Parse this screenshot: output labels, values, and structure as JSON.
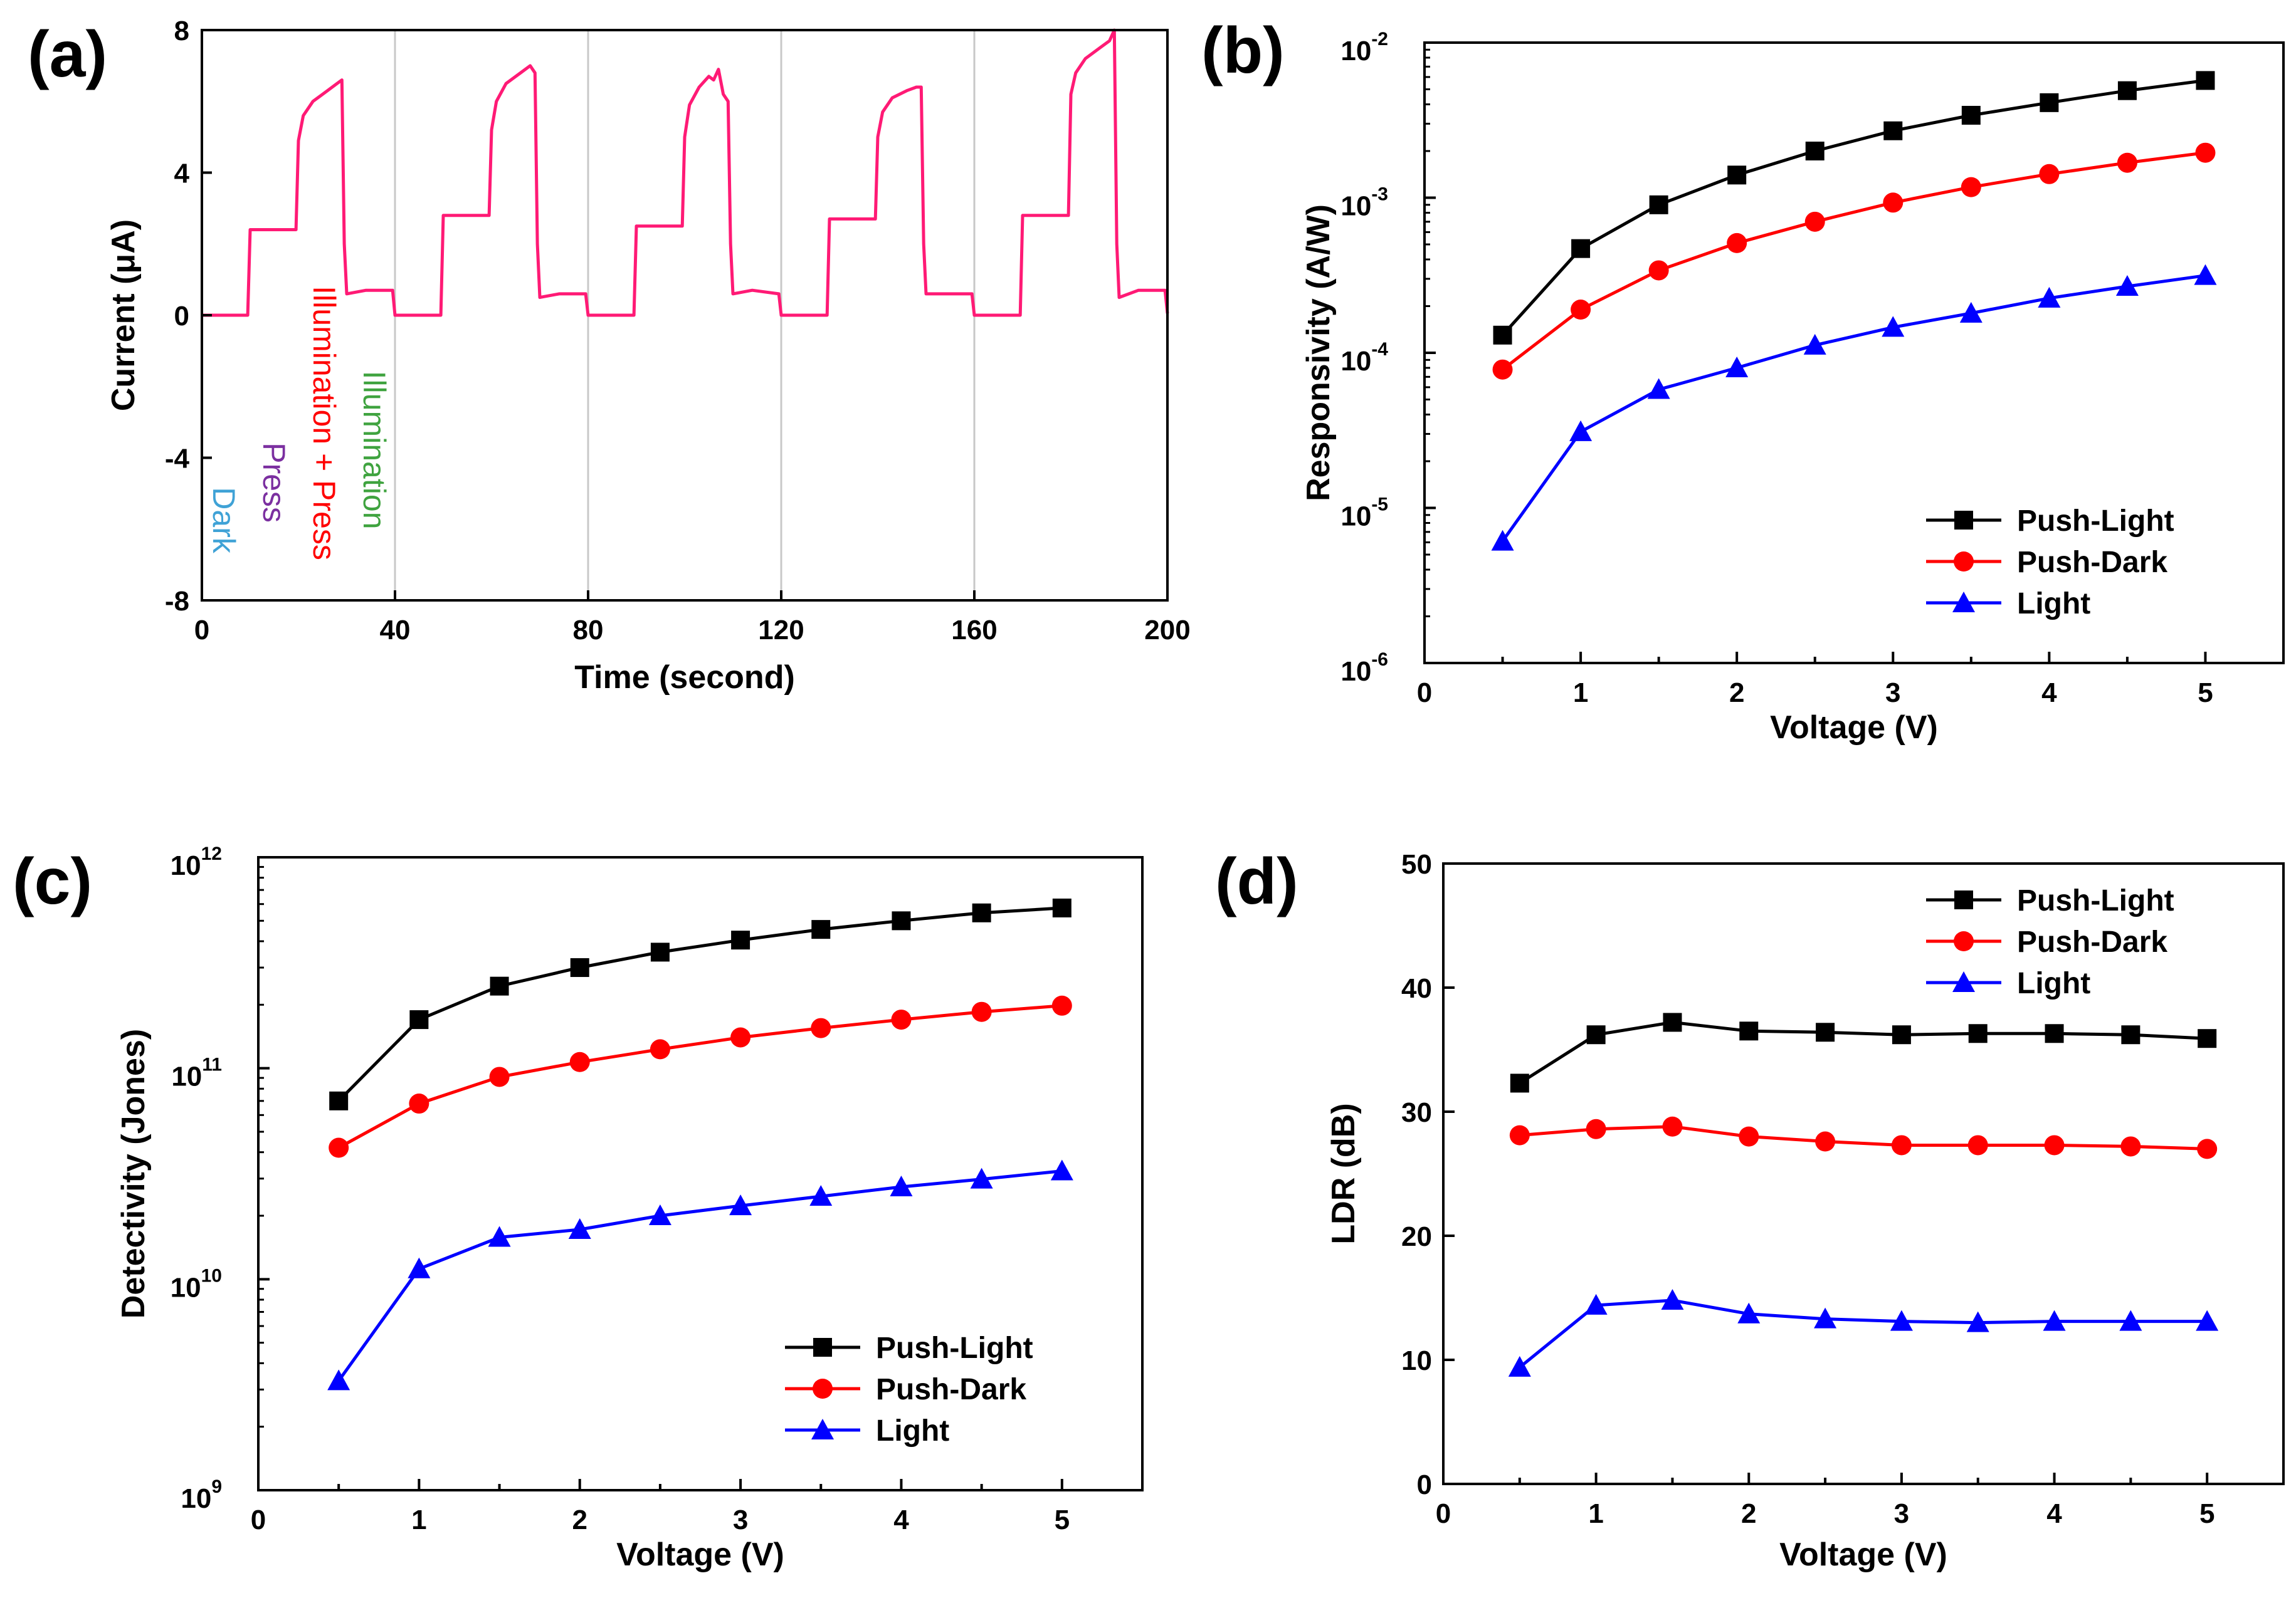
{
  "colors": {
    "black": "#000000",
    "red": "#ff0000",
    "blue": "#0000ff",
    "pink": "#ff1a75",
    "grid": "#c8c8c8"
  },
  "chart_data": [
    {
      "panel": "(a)",
      "type": "line",
      "title": "",
      "xlabel": "Time (second)",
      "ylabel": "Current (μA)",
      "xlim": [
        0,
        200
      ],
      "ylim": [
        -8,
        8
      ],
      "xticks": [
        "0",
        "40",
        "80",
        "120",
        "160",
        "200"
      ],
      "yticks": [
        "-8",
        "-4",
        "0",
        "4",
        "8"
      ],
      "cycle_boundaries": [
        40,
        80,
        120,
        160
      ],
      "annotations": [
        {
          "text": "Dark",
          "color": "#3fa2d6"
        },
        {
          "text": "Press",
          "color": "#7b2fa0"
        },
        {
          "text": "Illumination + Press",
          "color": "#ff0000"
        },
        {
          "text": "Illumination",
          "color": "#3fa33f"
        }
      ],
      "series": [
        {
          "name": "Current",
          "color": "#ff1a75",
          "x": [
            0,
            9.5,
            10,
            19.5,
            20,
            21,
            23,
            26,
            28,
            29,
            29.5,
            30,
            34,
            39.5,
            40,
            49.5,
            50,
            59.5,
            60,
            61,
            63,
            66,
            68,
            69,
            69.5,
            70,
            74,
            79.5,
            80,
            89.5,
            90,
            99.5,
            100,
            101,
            103,
            105,
            106,
            107,
            108,
            109,
            109.5,
            110,
            114,
            119.5,
            120,
            129.5,
            130,
            139.5,
            140,
            141,
            143,
            146,
            148,
            149,
            149.5,
            150,
            154,
            159.5,
            160,
            169.5,
            170,
            179.5,
            180,
            181,
            183,
            186,
            188,
            189,
            189.5,
            190,
            194,
            199.5,
            200
          ],
          "y": [
            0,
            0,
            2.4,
            2.4,
            4.9,
            5.6,
            6.0,
            6.3,
            6.5,
            6.6,
            2.0,
            0.6,
            0.7,
            0.7,
            0,
            0,
            2.8,
            2.8,
            5.2,
            6.0,
            6.5,
            6.8,
            7.0,
            6.8,
            2.0,
            0.5,
            0.6,
            0.6,
            0,
            0,
            2.5,
            2.5,
            5.0,
            5.9,
            6.4,
            6.7,
            6.6,
            6.9,
            6.2,
            6.0,
            2.0,
            0.6,
            0.7,
            0.6,
            0,
            0,
            2.7,
            2.7,
            5.0,
            5.7,
            6.1,
            6.3,
            6.4,
            6.4,
            2.0,
            0.6,
            0.6,
            0.6,
            0,
            0,
            2.8,
            2.8,
            6.2,
            6.8,
            7.2,
            7.5,
            7.7,
            8.0,
            2.0,
            0.5,
            0.7,
            0.7,
            0.05
          ]
        }
      ]
    },
    {
      "panel": "(b)",
      "type": "line",
      "title": "",
      "xlabel": "Voltage (V)",
      "ylabel": "Responsivity (A/W)",
      "yscale": "log",
      "xlim": [
        0,
        5.5
      ],
      "ylim_exp": [
        -6,
        -2
      ],
      "xticks": [
        "0",
        "1",
        "2",
        "3",
        "4",
        "5"
      ],
      "ytick_base": "10",
      "ytick_exponents": [
        "-6",
        "-5",
        "-4",
        "-3",
        "-2"
      ],
      "legend_position": "bottom-right",
      "x": [
        0.5,
        1.0,
        1.5,
        2.0,
        2.5,
        3.0,
        3.5,
        4.0,
        4.5,
        5.0
      ],
      "series": [
        {
          "name": "Push-Light",
          "color": "#000000",
          "marker": "square",
          "values": [
            0.00013,
            0.00047,
            0.0009,
            0.0014,
            0.002,
            0.0027,
            0.0034,
            0.0041,
            0.0049,
            0.0057
          ]
        },
        {
          "name": "Push-Dark",
          "color": "#ff0000",
          "marker": "circle",
          "values": [
            7.8e-05,
            0.00019,
            0.00034,
            0.00051,
            0.0007,
            0.00093,
            0.00117,
            0.00142,
            0.00168,
            0.00195
          ]
        },
        {
          "name": "Light",
          "color": "#0000ff",
          "marker": "triangle",
          "values": [
            6.1e-06,
            3.1e-05,
            5.8e-05,
            8e-05,
            0.000112,
            0.000146,
            0.00018,
            0.000225,
            0.000268,
            0.000315
          ]
        }
      ]
    },
    {
      "panel": "(c)",
      "type": "line",
      "title": "",
      "xlabel": "Voltage (V)",
      "ylabel": "Detectivity (Jones)",
      "yscale": "log",
      "xlim": [
        0,
        5.5
      ],
      "ylim_exp": [
        9,
        12
      ],
      "xticks": [
        "0",
        "1",
        "2",
        "3",
        "4",
        "5"
      ],
      "ytick_base": "10",
      "ytick_exponents": [
        "9",
        "10",
        "11",
        "12"
      ],
      "legend_position": "bottom-right",
      "x": [
        0.5,
        1.0,
        1.5,
        2.0,
        2.5,
        3.0,
        3.5,
        4.0,
        4.5,
        5.0
      ],
      "series": [
        {
          "name": "Push-Light",
          "color": "#000000",
          "marker": "square",
          "values": [
            70000000000,
            170000000000,
            245000000000,
            300000000000,
            355000000000,
            405000000000,
            455000000000,
            500000000000,
            545000000000,
            575000000000
          ]
        },
        {
          "name": "Push-Dark",
          "color": "#ff0000",
          "marker": "circle",
          "values": [
            42000000000,
            68000000000,
            91000000000,
            107000000000,
            123000000000,
            140000000000,
            155000000000,
            170000000000,
            185000000000,
            198000000000
          ]
        },
        {
          "name": "Light",
          "color": "#0000ff",
          "marker": "triangle",
          "values": [
            3300000000,
            11200000000,
            15800000000,
            17200000000,
            20000000000,
            22300000000,
            24700000000,
            27400000000,
            29800000000,
            32600000000
          ]
        }
      ]
    },
    {
      "panel": "(d)",
      "type": "line",
      "title": "",
      "xlabel": "Voltage (V)",
      "ylabel": "LDR (dB)",
      "xlim": [
        0,
        5.5
      ],
      "ylim": [
        0,
        50
      ],
      "xticks": [
        "0",
        "1",
        "2",
        "3",
        "4",
        "5"
      ],
      "yticks": [
        "0",
        "10",
        "20",
        "30",
        "40",
        "50"
      ],
      "legend_position": "top-right",
      "x": [
        0.5,
        1.0,
        1.5,
        2.0,
        2.5,
        3.0,
        3.5,
        4.0,
        4.5,
        5.0
      ],
      "series": [
        {
          "name": "Push-Light",
          "color": "#000000",
          "marker": "square",
          "values": [
            32.3,
            36.2,
            37.2,
            36.5,
            36.4,
            36.2,
            36.3,
            36.3,
            36.2,
            35.9
          ]
        },
        {
          "name": "Push-Dark",
          "color": "#ff0000",
          "marker": "circle",
          "values": [
            28.1,
            28.6,
            28.8,
            28.0,
            27.6,
            27.3,
            27.3,
            27.3,
            27.2,
            27.0
          ]
        },
        {
          "name": "Light",
          "color": "#0000ff",
          "marker": "triangle",
          "values": [
            9.4,
            14.4,
            14.8,
            13.7,
            13.3,
            13.1,
            13.0,
            13.1,
            13.1,
            13.1
          ]
        }
      ]
    }
  ]
}
